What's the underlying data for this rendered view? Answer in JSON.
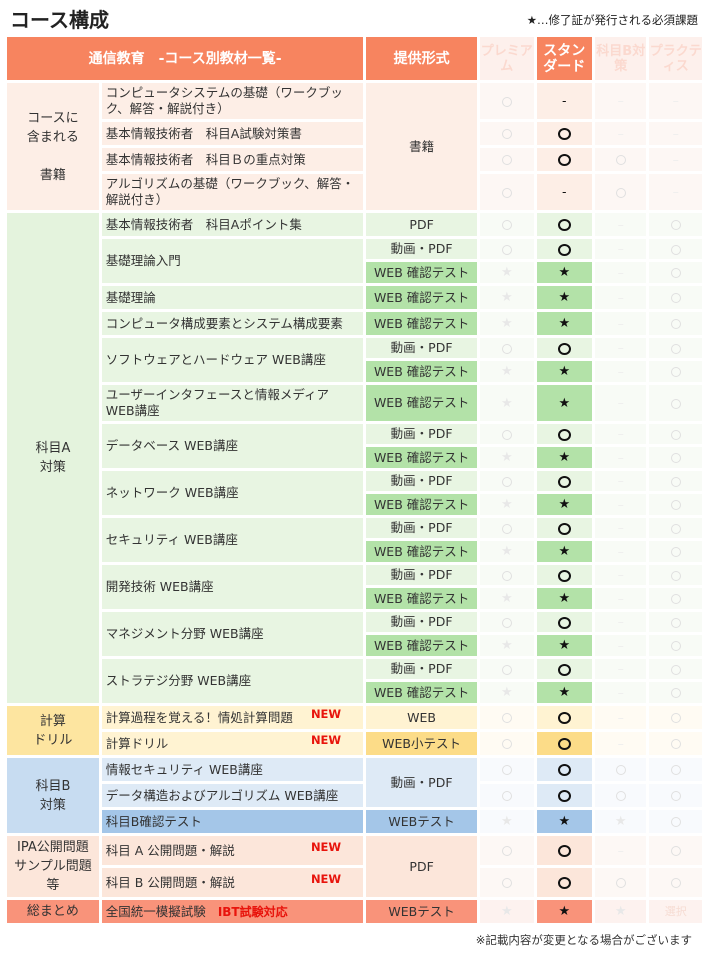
{
  "title": "コース構成",
  "legend": "★…修了証が発行される必須課題",
  "header": {
    "materials": "通信教育　-コース別教材一覧-",
    "format": "提供形式",
    "plans": [
      "プレミアム",
      "スタンダード",
      "科目B対策",
      "プラクティス"
    ]
  },
  "colors": {
    "header": "#f7845f"
  },
  "groups": [
    {
      "category": "コースに\n含まれる\n\n書籍",
      "theme": {
        "cat": "#fdeee6",
        "item": "#fdeee6",
        "dark": "#fdeee6",
        "faint": "#fdf7f4"
      },
      "rows": [
        {
          "item": "コンピュータシステムの基礎（ワークブック、解答・解説付き）",
          "format": "書籍",
          "format_span": 4,
          "marks": [
            "o",
            "-",
            "-",
            "-"
          ]
        },
        {
          "item": "基本情報技術者　科目A試験対策書",
          "marks": [
            "o",
            "o",
            "-",
            "-"
          ]
        },
        {
          "item": "基本情報技術者　科目Ｂの重点対策",
          "marks": [
            "o",
            "o",
            "o",
            "-"
          ]
        },
        {
          "item": "アルゴリズムの基礎（ワークブック、解答・解説付き）",
          "marks": [
            "o",
            "-",
            "o",
            "-"
          ]
        }
      ]
    },
    {
      "category": "科目A\n対策",
      "theme": {
        "cat": "#e4f3dd",
        "item": "#e8f5e2",
        "dark": "#b3e2a8",
        "faint": "#f8fbf6"
      },
      "rows": [
        {
          "item": "基本情報技術者　科目Aポイント集",
          "format": "PDF",
          "marks": [
            "o",
            "o",
            "-",
            "o"
          ]
        },
        {
          "item": "基礎理論入門",
          "item_span": 2,
          "format": "動画・PDF",
          "marks": [
            "o",
            "o",
            "-",
            "o"
          ]
        },
        {
          "format": "WEB 確認テスト",
          "dark": true,
          "marks": [
            "*",
            "*",
            "-",
            "o"
          ]
        },
        {
          "item": "基礎理論",
          "format": "WEB 確認テスト",
          "dark": true,
          "marks": [
            "*",
            "*",
            "-",
            "o"
          ]
        },
        {
          "item": "コンピュータ構成要素とシステム構成要素",
          "format": "WEB 確認テスト",
          "dark": true,
          "marks": [
            "*",
            "*",
            "-",
            "o"
          ]
        },
        {
          "item": "ソフトウェアとハードウェア WEB講座",
          "item_span": 2,
          "format": "動画・PDF",
          "marks": [
            "o",
            "o",
            "-",
            "o"
          ]
        },
        {
          "format": "WEB 確認テスト",
          "dark": true,
          "marks": [
            "*",
            "*",
            "-",
            "o"
          ]
        },
        {
          "item": "ユーザーインタフェースと情報メディア WEB講座",
          "format": "WEB 確認テスト",
          "dark": true,
          "marks": [
            "*",
            "*",
            "-",
            "o"
          ]
        },
        {
          "item": "データベース WEB講座",
          "item_span": 2,
          "format": "動画・PDF",
          "marks": [
            "o",
            "o",
            "-",
            "o"
          ]
        },
        {
          "format": "WEB 確認テスト",
          "dark": true,
          "marks": [
            "*",
            "*",
            "-",
            "o"
          ]
        },
        {
          "item": "ネットワーク WEB講座",
          "item_span": 2,
          "format": "動画・PDF",
          "marks": [
            "o",
            "o",
            "-",
            "o"
          ]
        },
        {
          "format": "WEB 確認テスト",
          "dark": true,
          "marks": [
            "*",
            "*",
            "-",
            "o"
          ]
        },
        {
          "item": "セキュリティ WEB講座",
          "item_span": 2,
          "format": "動画・PDF",
          "marks": [
            "o",
            "o",
            "-",
            "o"
          ]
        },
        {
          "format": "WEB 確認テスト",
          "dark": true,
          "marks": [
            "*",
            "*",
            "-",
            "o"
          ]
        },
        {
          "item": "開発技術 WEB講座",
          "item_span": 2,
          "format": "動画・PDF",
          "marks": [
            "o",
            "o",
            "-",
            "o"
          ]
        },
        {
          "format": "WEB 確認テスト",
          "dark": true,
          "marks": [
            "*",
            "*",
            "-",
            "o"
          ]
        },
        {
          "item": "マネジメント分野 WEB講座",
          "item_span": 2,
          "format": "動画・PDF",
          "marks": [
            "o",
            "o",
            "-",
            "o"
          ]
        },
        {
          "format": "WEB 確認テスト",
          "dark": true,
          "marks": [
            "*",
            "*",
            "-",
            "o"
          ]
        },
        {
          "item": "ストラテジ分野 WEB講座",
          "item_span": 2,
          "format": "動画・PDF",
          "marks": [
            "o",
            "o",
            "-",
            "o"
          ]
        },
        {
          "format": "WEB 確認テスト",
          "dark": true,
          "marks": [
            "*",
            "*",
            "-",
            "o"
          ]
        }
      ]
    },
    {
      "category": "計算\nドリル",
      "theme": {
        "cat": "#fde5a0",
        "item": "#fff3d2",
        "dark": "#fcdc88",
        "faint": "#fffbf3"
      },
      "rows": [
        {
          "item": "計算過程を覚える！情処計算問題",
          "new": "NEW",
          "format": "WEB",
          "marks": [
            "o",
            "o",
            "-",
            "o"
          ]
        },
        {
          "item": "計算ドリル",
          "new": "NEW",
          "format": "WEB小テスト",
          "dark_format": true,
          "dark": true,
          "marks": [
            "o",
            "o",
            "-",
            "o"
          ]
        }
      ]
    },
    {
      "category": "科目B\n対策",
      "theme": {
        "cat": "#c7dcf1",
        "item": "#deeaf6",
        "dark": "#a4c6e8",
        "faint": "#f8fafd"
      },
      "rows": [
        {
          "item": "情報セキュリティ WEB講座",
          "format": "動画・PDF",
          "format_span": 2,
          "marks": [
            "o",
            "o",
            "o",
            "o"
          ]
        },
        {
          "item": "データ構造およびアルゴリズム WEB講座",
          "marks": [
            "o",
            "o",
            "o",
            "o"
          ]
        },
        {
          "item": "科目B確認テスト",
          "dark_item": true,
          "format": "WEBテスト",
          "dark": true,
          "marks": [
            "*",
            "*",
            "*",
            "o"
          ]
        }
      ]
    },
    {
      "category": "IPA公開問題\nサンプル問題等",
      "theme": {
        "cat": "#fce6da",
        "item": "#fce6da",
        "dark": "#fce6da",
        "faint": "#fdf8f5"
      },
      "rows": [
        {
          "item": "科目 A  公開問題・解説",
          "new": "NEW",
          "format": "PDF",
          "format_span": 2,
          "marks": [
            "o",
            "o",
            "-",
            "o"
          ]
        },
        {
          "item": "科目 B  公開問題・解説",
          "new": "NEW",
          "marks": [
            "o",
            "o",
            "o",
            "o"
          ]
        }
      ]
    },
    {
      "category": "総まとめ",
      "theme": {
        "cat": "#f9937a",
        "item": "#f9937a",
        "dark": "#f9937a",
        "faint": "#fdf2ef"
      },
      "rows": [
        {
          "item": "全国統一模擬試験",
          "tag": "IBT試験対応",
          "format": "WEBテスト",
          "marks": [
            "*",
            "*",
            "*",
            "選択"
          ]
        }
      ]
    }
  ],
  "footnote": "※記載内容が変更となる場合がございます"
}
